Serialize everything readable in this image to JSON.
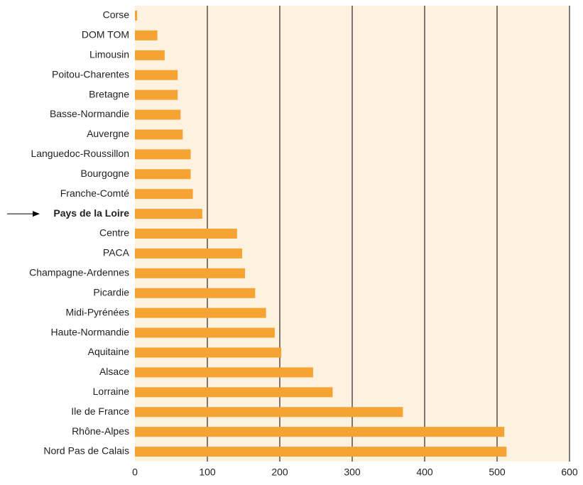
{
  "chart_data": {
    "type": "bar",
    "orientation": "horizontal",
    "categories": [
      "Corse",
      "DOM TOM",
      "Limousin",
      "Poitou-Charentes",
      "Bretagne",
      "Basse-Normandie",
      "Auvergne",
      "Languedoc-Roussillon",
      "Bourgogne",
      "Franche-Comté",
      "Pays de la Loire",
      "Centre",
      "PACA",
      "Champagne-Ardennes",
      "Picardie",
      "Midi-Pyrénées",
      "Haute-Normandie",
      "Aquitaine",
      "Alsace",
      "Lorraine",
      "Ile de France",
      "Rhône-Alpes",
      "Nord Pas de Calais"
    ],
    "values": [
      3,
      31,
      41,
      59,
      59,
      63,
      66,
      77,
      77,
      80,
      93,
      141,
      148,
      152,
      166,
      181,
      193,
      202,
      246,
      273,
      370,
      510,
      513
    ],
    "color": "#f5a433",
    "xlim": [
      0,
      600
    ],
    "xticks": [
      0,
      100,
      200,
      300,
      400,
      500,
      600
    ],
    "grid": true,
    "highlight_index": 10
  }
}
